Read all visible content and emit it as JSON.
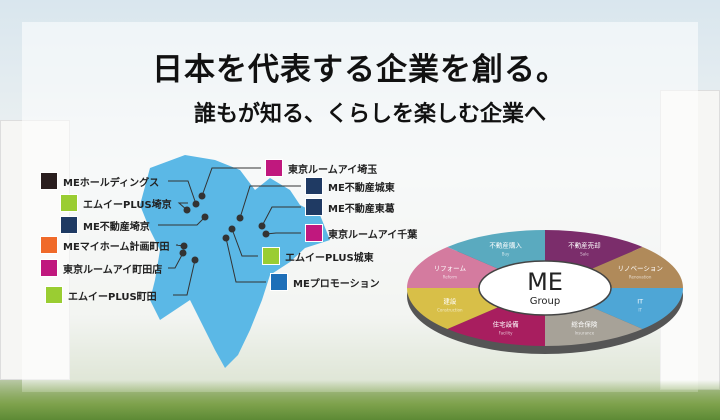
{
  "headline": "日本を代表する企業を創る。",
  "subheadline": "誰もが知る、くらしを楽しむ企業へ",
  "companies": [
    {
      "name": "MEホールディングス",
      "color": "#2a1e1e"
    },
    {
      "name": "エムイーPLUS埼京",
      "color": "#9acd32"
    },
    {
      "name": "ME不動産埼京",
      "color": "#1f3a63"
    },
    {
      "name": "MEマイホーム計画町田",
      "color": "#f06a2a"
    },
    {
      "name": "東京ルームアイ町田店",
      "color": "#c0187e"
    },
    {
      "name": "エムイーPLUS町田",
      "color": "#9acd32"
    },
    {
      "name": "東京ルームアイ埼玉",
      "color": "#c0187e"
    },
    {
      "name": "ME不動産城東",
      "color": "#1f3a63"
    },
    {
      "name": "ME不動産東葛",
      "color": "#1f3a63"
    },
    {
      "name": "東京ルームアイ千葉",
      "color": "#c0187e"
    },
    {
      "name": "エムイーPLUS城東",
      "color": "#9acd32"
    },
    {
      "name": "MEプロモーション",
      "color": "#1d6fb8"
    }
  ],
  "group": {
    "logo_main": "ME",
    "logo_sub": "Group",
    "segments": [
      {
        "jp": "不動産売却",
        "en": "Sale",
        "color": "#7b2d6b"
      },
      {
        "jp": "リノベーション",
        "en": "Renovation",
        "color": "#b08a5a"
      },
      {
        "jp": "IT",
        "en": "IT",
        "color": "#4ea6d6"
      },
      {
        "jp": "総合保険",
        "en": "Insurance",
        "color": "#a7a298"
      },
      {
        "jp": "住宅設備",
        "en": "Facility",
        "color": "#a81e5f"
      },
      {
        "jp": "建設",
        "en": "Construction",
        "color": "#d8bf48"
      },
      {
        "jp": "リフォーム",
        "en": "Reform",
        "color": "#d47b9f"
      },
      {
        "jp": "不動産購入",
        "en": "Buy",
        "color": "#5aaabf"
      }
    ]
  }
}
